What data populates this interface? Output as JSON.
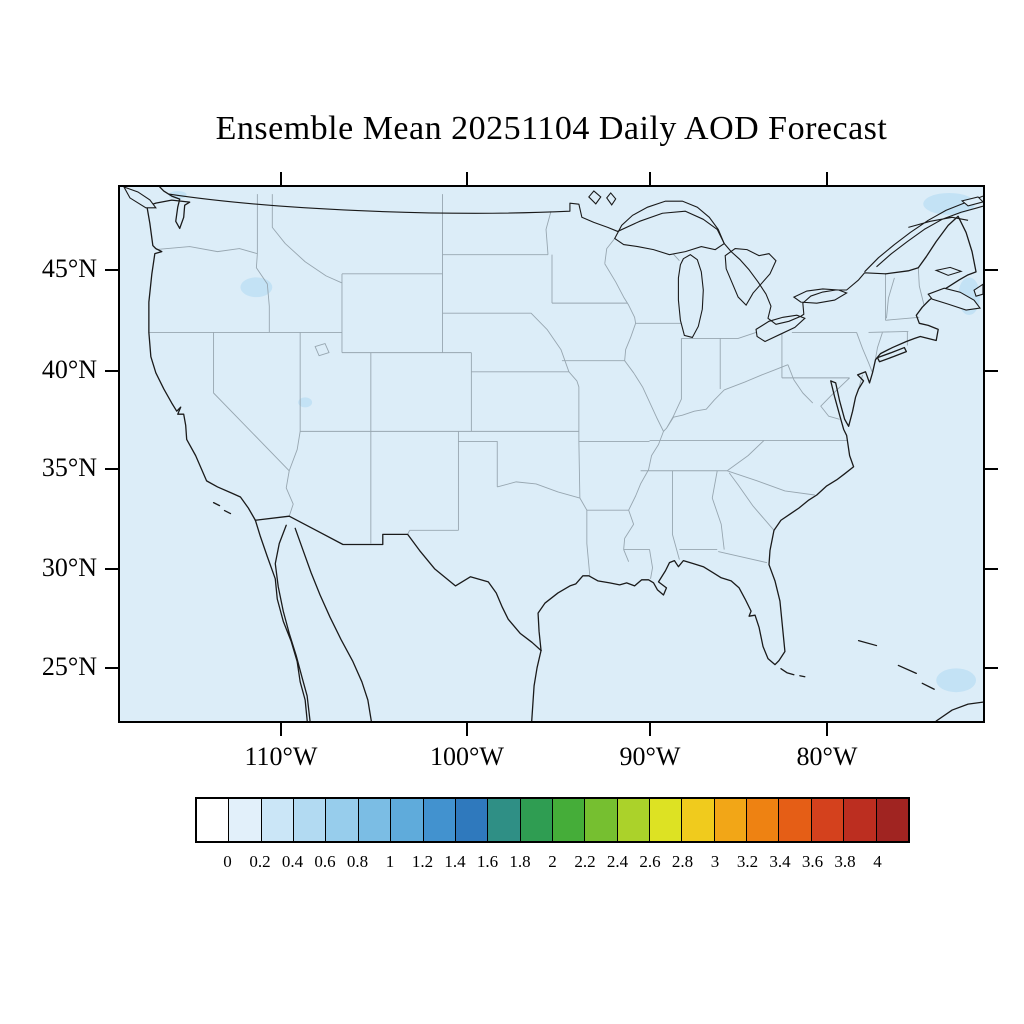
{
  "title": "Ensemble Mean 20251104 Daily AOD Forecast",
  "map": {
    "fill_color": "#dcedf8",
    "aod_patch_color": "#c3e2f5",
    "frame_color": "#000000",
    "state_line_color": "#97a6b0",
    "x_ticks": [
      {
        "label": "110°W",
        "f": 0.188
      },
      {
        "label": "100°W",
        "f": 0.4025
      },
      {
        "label": "90°W",
        "f": 0.6136
      },
      {
        "label": "80°W",
        "f": 0.8177
      }
    ],
    "y_ticks": [
      {
        "label": "45°N",
        "f": 0.158
      },
      {
        "label": "40°N",
        "f": 0.3457
      },
      {
        "label": "35°N",
        "f": 0.5279
      },
      {
        "label": "30°N",
        "f": 0.7137
      },
      {
        "label": "25°N",
        "f": 0.8978
      }
    ]
  },
  "colorbar": {
    "labels": [
      "0",
      "0.2",
      "0.4",
      "0.6",
      "0.8",
      "1",
      "1.2",
      "1.4",
      "1.6",
      "1.8",
      "2",
      "2.2",
      "2.4",
      "2.6",
      "2.8",
      "3",
      "3.2",
      "3.4",
      "3.6",
      "3.8",
      "4"
    ],
    "colors": [
      "#ffffff",
      "#e2f0fa",
      "#cbe6f7",
      "#b2daf2",
      "#97cdec",
      "#7bbde4",
      "#5fabdb",
      "#4292cf",
      "#2f79bd",
      "#2f8f85",
      "#2f9d52",
      "#45ad39",
      "#76bf30",
      "#abd22a",
      "#dde223",
      "#f0cb1d",
      "#f2a617",
      "#ee8212",
      "#e55e16",
      "#d4411d",
      "#bc2e20",
      "#a02421"
    ]
  },
  "chart_data": {
    "type": "heatmap",
    "title": "Ensemble Mean 20251104 Daily AOD Forecast",
    "variable": "AOD",
    "region": "Contiguous United States with surrounding coasts",
    "x_tick_labels": [
      "110°W",
      "100°W",
      "90°W",
      "80°W"
    ],
    "y_tick_labels": [
      "45°N",
      "40°N",
      "35°N",
      "30°N",
      "25°N"
    ],
    "colorbar_levels": [
      0,
      0.2,
      0.4,
      0.6,
      0.8,
      1,
      1.2,
      1.4,
      1.6,
      1.8,
      2,
      2.2,
      2.4,
      2.6,
      2.8,
      3,
      3.2,
      3.4,
      3.6,
      3.8,
      4
    ],
    "colorbar_colors": [
      "#ffffff",
      "#e2f0fa",
      "#cbe6f7",
      "#b2daf2",
      "#97cdec",
      "#7bbde4",
      "#5fabdb",
      "#4292cf",
      "#2f79bd",
      "#2f8f85",
      "#2f9d52",
      "#45ad39",
      "#76bf30",
      "#abd22a",
      "#dde223",
      "#f0cb1d",
      "#f2a617",
      "#ee8212",
      "#e55e16",
      "#d4411d",
      "#bc2e20",
      "#a02421"
    ],
    "field_summary": "AOD below 0.2 (pale blue lowest class) over essentially the entire domain, with a few small 0.2-0.4 patches: inland Pacific Northwest, Great Salt Lake area, Canadian Maritimes / northwest Atlantic waters, and the far southeast ocean corner",
    "legend_position": "bottom horizontal colorbar",
    "grid": false
  }
}
